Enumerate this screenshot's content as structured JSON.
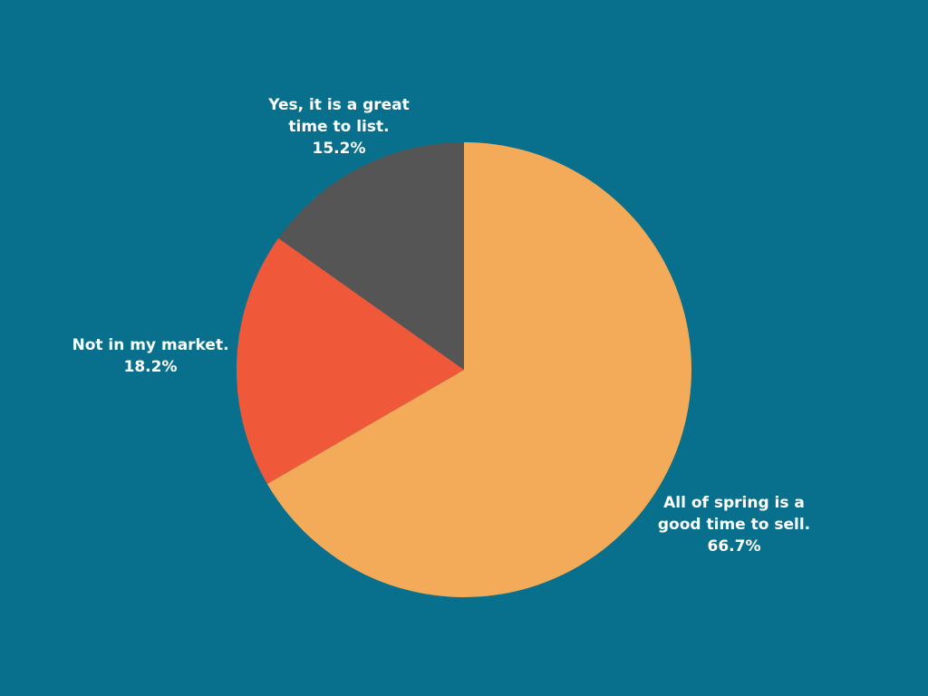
{
  "chart_data": {
    "type": "pie",
    "start_angle": "12 o'clock, clockwise",
    "slices": [
      {
        "label": "All of spring is a good time to sell.",
        "label_lines": [
          "All of spring is a",
          "good time to sell."
        ],
        "value": 66.7,
        "value_label": "66.7%",
        "color": "#f3ab59"
      },
      {
        "label": "Not in my market.",
        "label_lines": [
          "Not in my market."
        ],
        "value": 18.2,
        "value_label": "18.2%",
        "color": "#ef5838"
      },
      {
        "label": "Yes, it is a great time to list.",
        "label_lines": [
          "Yes, it is a great",
          "time to list."
        ],
        "value": 15.2,
        "value_label": "15.2%",
        "color": "#555555"
      }
    ],
    "legend": "none",
    "background": "#08708c"
  }
}
